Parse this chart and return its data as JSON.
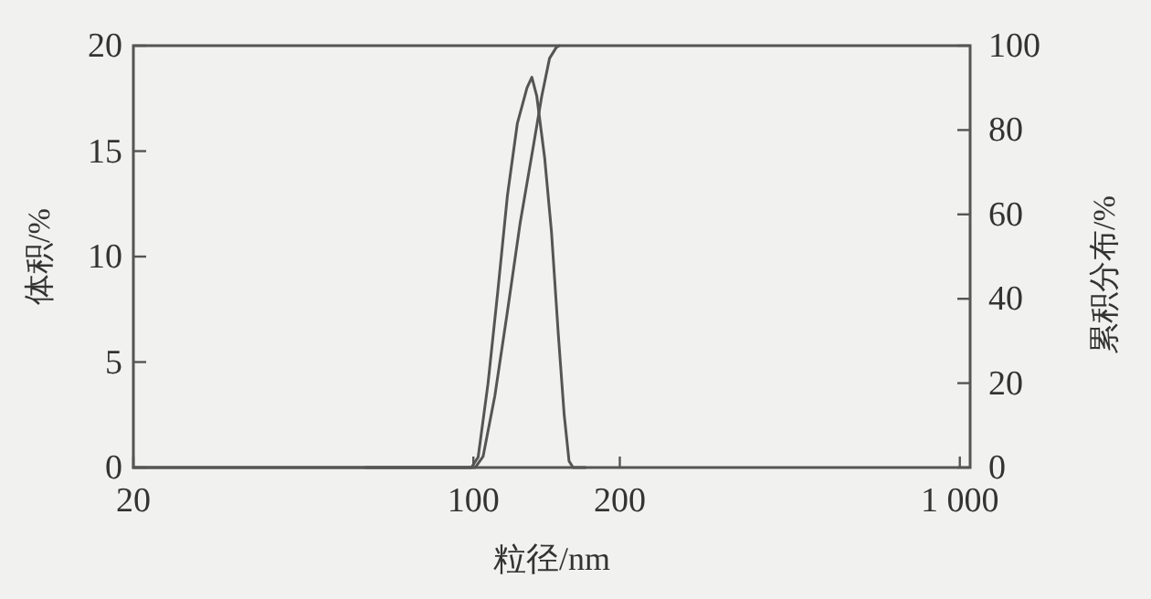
{
  "chart_data": {
    "type": "line",
    "xlabel": "粒径/nm",
    "ylabel": "体积/%",
    "y2label": "累积分布/%",
    "log": "x",
    "xlim": [
      20,
      1050
    ],
    "xticks": [
      20,
      100,
      200,
      {
        "value": 1000,
        "label": "1 000"
      }
    ],
    "ylim": [
      0,
      20
    ],
    "yticks": [
      0,
      5,
      10,
      15,
      20
    ],
    "y2lim": [
      0,
      100
    ],
    "y2ticks": [
      0,
      20,
      40,
      60,
      80,
      100
    ],
    "series": [
      {
        "color": "#555555",
        "x": [
          20,
          60,
          99.1,
          102.3,
          107.2,
          112.2,
          117.5,
          123.1,
          128.9,
          131.9,
          135.0,
          140.1,
          144.7,
          149.5,
          153.7,
          157.3,
          160.3,
          170
        ],
        "values": [
          0,
          0,
          0,
          0.5,
          4.0,
          8.3,
          12.9,
          16.3,
          18.0,
          18.5,
          17.6,
          14.7,
          11.2,
          6.3,
          2.5,
          0.3,
          0,
          0
        ]
      },
      {
        "color": "#555555",
        "axis": "y2",
        "x": [
          60,
          100.9,
          104.7,
          110.7,
          117.5,
          124.8,
          133.2,
          138.2,
          143.4,
          148.1,
          150.2
        ],
        "values": [
          0,
          0,
          2.6,
          17,
          37,
          58,
          77,
          88,
          97,
          99.6,
          100
        ]
      }
    ]
  }
}
